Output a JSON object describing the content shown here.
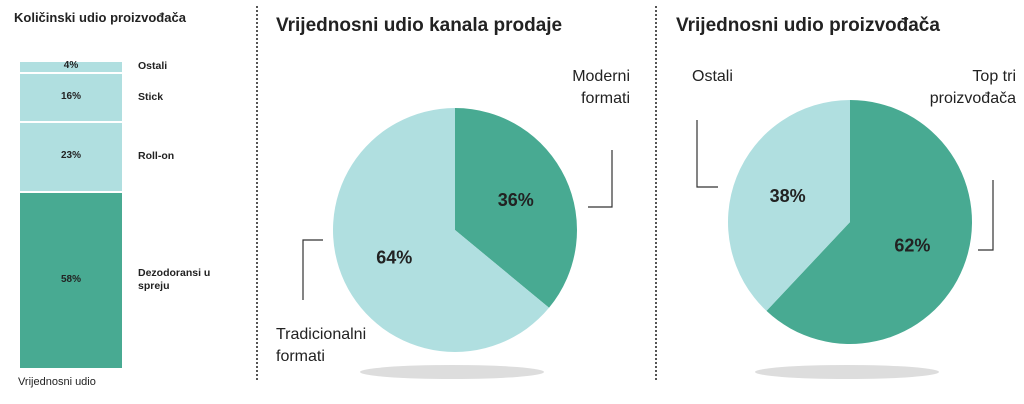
{
  "chart_data": [
    {
      "type": "bar",
      "stacked": true,
      "title": "Količinski udio proizvođača",
      "categories": [
        "Vrijednosni udio"
      ],
      "series": [
        {
          "name": "Dezodoransi u spreju",
          "color": "#48aa92",
          "values": [
            58
          ],
          "value_labels": [
            "58%"
          ]
        },
        {
          "name": "Roll-on",
          "color": "#b0dfe0",
          "values": [
            23
          ],
          "value_labels": [
            "23%"
          ]
        },
        {
          "name": "Stick",
          "color": "#b0dfe0",
          "values": [
            16
          ],
          "value_labels": [
            "16%"
          ]
        },
        {
          "name": "Ostali",
          "color": "#b0dfe0",
          "values": [
            4
          ],
          "value_labels": [
            "4%"
          ]
        }
      ]
    },
    {
      "type": "pie",
      "title": "Vrijednosni udio kanala prodaje",
      "categories": [
        "Moderni formati",
        "Tradicionalni formati"
      ],
      "values": [
        36,
        64
      ],
      "value_labels": [
        "36%",
        "64%"
      ],
      "colors": [
        "#48aa92",
        "#b0dfe0"
      ]
    },
    {
      "type": "pie",
      "title": "Vrijednosni udio proizvođača",
      "categories": [
        "Top tri proizvođača",
        "Ostali"
      ],
      "values": [
        62,
        38
      ],
      "value_labels": [
        "62%",
        "38%"
      ],
      "colors": [
        "#48aa92",
        "#b0dfe0"
      ]
    }
  ]
}
